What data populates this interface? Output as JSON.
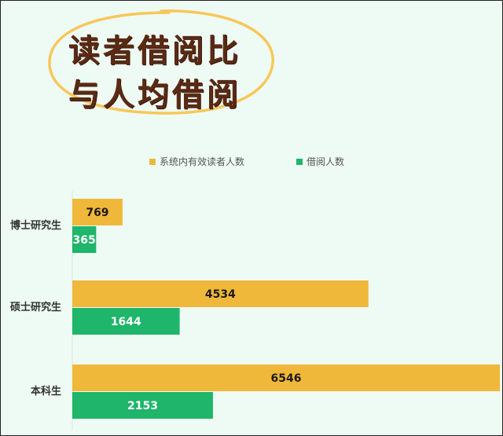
{
  "title": {
    "line1": "读者借阅比",
    "line2": "与人均借阅"
  },
  "colors": {
    "readers": "#f0b83a",
    "borrowers": "#1fb56a",
    "title_text": "#5a2a14",
    "ellipse": "#f6c85a"
  },
  "chart_data": {
    "type": "bar",
    "orientation": "horizontal",
    "categories": [
      "博士研究生",
      "硕士研究生",
      "本科生"
    ],
    "series": [
      {
        "name": "系统内有效读者人数",
        "values": [
          769,
          4534,
          6546
        ],
        "color": "#f0b83a"
      },
      {
        "name": "借阅人数",
        "values": [
          365,
          1644,
          2153
        ],
        "color": "#1fb56a"
      }
    ],
    "xlim": [
      0,
      6546
    ],
    "grid": false,
    "legend_position": "top",
    "data_labels": true
  }
}
